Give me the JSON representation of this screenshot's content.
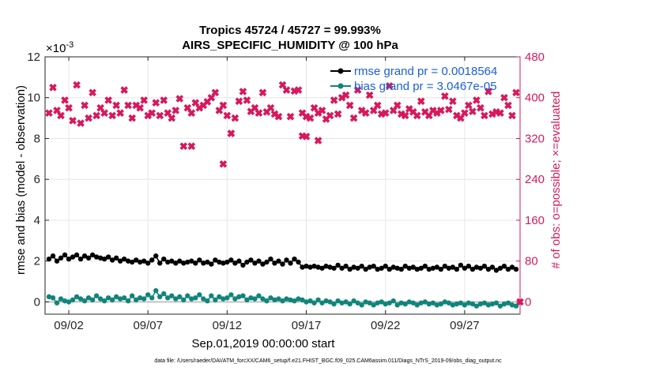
{
  "chart_data": {
    "type": "line",
    "title_line1": "Tropics 45724 / 45727 = 99.993%",
    "title_line2": "AIRS_SPECIFIC_HUMIDITY @ 100 hPa",
    "left_exponent_base": "×10",
    "left_exponent_power": "-3",
    "xlabel": "Sep.01,2019 00:00:00 start",
    "ylabel_left": "rmse and bias (model - observation)",
    "ylabel_right": "# of obs: o=possible; ×=evaluated",
    "footnote": "data file: /Users/raeder/DAI/ATM_forcXX/CAM6_setup/f.e21.FHIST_BGC.f09_025.CAM6assim.011/Diags_NTrS_2019-09/obs_diag_output.nc",
    "xlim": [
      0.5,
      30.5
    ],
    "ylim_left": [
      -0.6,
      12
    ],
    "ylim_right": [
      -24,
      480
    ],
    "x_ticks": [
      2,
      7,
      12,
      17,
      22,
      27
    ],
    "x_tick_labels": [
      "09/02",
      "09/07",
      "09/12",
      "09/17",
      "09/22",
      "09/27"
    ],
    "y_left_ticks": [
      0,
      2,
      4,
      6,
      8,
      10,
      12
    ],
    "y_left_tick_labels": [
      "0",
      "2",
      "4",
      "6",
      "8",
      "10",
      "12"
    ],
    "y_right_ticks": [
      0,
      80,
      160,
      240,
      320,
      400,
      480
    ],
    "y_right_tick_labels": [
      "0",
      "80",
      "160",
      "240",
      "320",
      "400",
      "480"
    ],
    "colors": {
      "rmse": "#000000",
      "bias": "#10857a",
      "obs": "#d6195d",
      "legend_text": "#1a5fe0",
      "zero_line": "#b4b4b4"
    },
    "series": [
      {
        "name": "rmse grand pr = 0.0018564",
        "axis": "left",
        "x": [
          0.75,
          1.0,
          1.25,
          1.5,
          1.75,
          2.0,
          2.25,
          2.5,
          2.75,
          3.0,
          3.25,
          3.5,
          3.75,
          4.0,
          4.25,
          4.5,
          4.75,
          5.0,
          5.25,
          5.5,
          5.75,
          6.0,
          6.25,
          6.5,
          6.75,
          7.0,
          7.25,
          7.5,
          7.75,
          8.0,
          8.25,
          8.5,
          8.75,
          9.0,
          9.25,
          9.5,
          9.75,
          10.0,
          10.25,
          10.5,
          10.75,
          11.0,
          11.25,
          11.5,
          11.75,
          12.0,
          12.25,
          12.5,
          12.75,
          13.0,
          13.25,
          13.5,
          13.75,
          14.0,
          14.25,
          14.5,
          14.75,
          15.0,
          15.25,
          15.5,
          15.75,
          16.0,
          16.25,
          16.5,
          16.75,
          17.0,
          17.25,
          17.5,
          17.75,
          18.0,
          18.25,
          18.5,
          18.75,
          19.0,
          19.25,
          19.5,
          19.75,
          20.0,
          20.25,
          20.5,
          20.75,
          21.0,
          21.25,
          21.5,
          21.75,
          22.0,
          22.25,
          22.5,
          22.75,
          23.0,
          23.25,
          23.5,
          23.75,
          24.0,
          24.25,
          24.5,
          24.75,
          25.0,
          25.25,
          25.5,
          25.75,
          26.0,
          26.25,
          26.5,
          26.75,
          27.0,
          27.25,
          27.5,
          27.75,
          28.0,
          28.25,
          28.5,
          28.75,
          29.0,
          29.25,
          29.5,
          29.75,
          30.0,
          30.25
        ],
        "values": [
          2.1,
          2.25,
          2.0,
          2.15,
          2.3,
          2.1,
          2.2,
          2.3,
          2.1,
          2.25,
          2.15,
          2.3,
          2.2,
          2.15,
          2.1,
          2.2,
          2.05,
          2.15,
          2.0,
          2.1,
          2.0,
          1.95,
          2.05,
          1.95,
          2.0,
          1.9,
          2.05,
          2.25,
          1.9,
          2.1,
          1.95,
          2.0,
          1.9,
          2.0,
          1.9,
          1.95,
          2.0,
          1.9,
          2.05,
          1.9,
          1.95,
          1.85,
          2.05,
          1.95,
          1.9,
          1.95,
          2.05,
          1.9,
          2.0,
          1.8,
          1.95,
          2.05,
          1.9,
          2.0,
          1.85,
          1.95,
          2.1,
          1.9,
          2.0,
          1.85,
          2.05,
          1.9,
          2.1,
          1.95,
          1.7,
          1.75,
          1.7,
          1.75,
          1.7,
          1.65,
          1.75,
          1.7,
          1.65,
          1.8,
          1.65,
          1.75,
          1.6,
          1.7,
          1.65,
          1.75,
          1.6,
          1.7,
          1.75,
          1.6,
          1.65,
          1.75,
          1.6,
          1.7,
          1.65,
          1.6,
          1.75,
          1.65,
          1.7,
          1.6,
          1.65,
          1.75,
          1.6,
          1.65,
          1.7,
          1.6,
          1.75,
          1.65,
          1.7,
          1.6,
          1.8,
          1.65,
          1.75,
          1.6,
          1.7,
          1.65,
          1.75,
          1.6,
          1.7,
          1.55,
          1.65,
          1.75,
          1.6,
          1.7,
          1.6
        ]
      },
      {
        "name": "bias grand pr = 3.0467e-05",
        "axis": "left",
        "x": [
          0.75,
          1.0,
          1.25,
          1.5,
          1.75,
          2.0,
          2.25,
          2.5,
          2.75,
          3.0,
          3.25,
          3.5,
          3.75,
          4.0,
          4.25,
          4.5,
          4.75,
          5.0,
          5.25,
          5.5,
          5.75,
          6.0,
          6.25,
          6.5,
          6.75,
          7.0,
          7.25,
          7.5,
          7.75,
          8.0,
          8.25,
          8.5,
          8.75,
          9.0,
          9.25,
          9.5,
          9.75,
          10.0,
          10.25,
          10.5,
          10.75,
          11.0,
          11.25,
          11.5,
          11.75,
          12.0,
          12.25,
          12.5,
          12.75,
          13.0,
          13.25,
          13.5,
          13.75,
          14.0,
          14.25,
          14.5,
          14.75,
          15.0,
          15.25,
          15.5,
          15.75,
          16.0,
          16.25,
          16.5,
          16.75,
          17.0,
          17.25,
          17.5,
          17.75,
          18.0,
          18.25,
          18.5,
          18.75,
          19.0,
          19.25,
          19.5,
          19.75,
          20.0,
          20.25,
          20.5,
          20.75,
          21.0,
          21.25,
          21.5,
          21.75,
          22.0,
          22.25,
          22.5,
          22.75,
          23.0,
          23.25,
          23.5,
          23.75,
          24.0,
          24.25,
          24.5,
          24.75,
          25.0,
          25.25,
          25.5,
          25.75,
          26.0,
          26.25,
          26.5,
          26.75,
          27.0,
          27.25,
          27.5,
          27.75,
          28.0,
          28.25,
          28.5,
          28.75,
          29.0,
          29.25,
          29.5,
          29.75,
          30.0,
          30.25
        ],
        "values": [
          0.25,
          0.2,
          -0.05,
          0.15,
          0.05,
          0.0,
          0.1,
          0.25,
          0.15,
          0.05,
          0.2,
          0.1,
          0.3,
          0.15,
          0.05,
          0.2,
          0.1,
          0.25,
          0.15,
          0.2,
          0.05,
          0.3,
          0.1,
          0.2,
          0.15,
          0.35,
          0.2,
          0.55,
          0.25,
          0.4,
          0.2,
          0.3,
          0.15,
          0.25,
          0.1,
          0.3,
          0.15,
          0.2,
          0.35,
          0.15,
          0.05,
          0.3,
          0.1,
          0.25,
          0.15,
          0.2,
          0.35,
          0.15,
          0.25,
          0.3,
          0.1,
          0.2,
          0.15,
          0.3,
          0.15,
          0.05,
          0.2,
          0.1,
          0.15,
          0.05,
          0.15,
          0.1,
          0.05,
          0.15,
          0.1,
          0.0,
          0.05,
          -0.05,
          0.1,
          -0.05,
          0.05,
          0.0,
          -0.1,
          0.05,
          -0.05,
          0.0,
          -0.1,
          0.05,
          -0.05,
          -0.15,
          0.0,
          -0.05,
          -0.15,
          -0.05,
          0.0,
          -0.1,
          -0.05,
          0.05,
          -0.15,
          -0.05,
          -0.1,
          0.0,
          -0.05,
          -0.15,
          -0.05,
          0.0,
          -0.1,
          -0.05,
          -0.15,
          -0.1,
          0.0,
          -0.05,
          -0.15,
          -0.1,
          -0.05,
          -0.15,
          -0.05,
          -0.1,
          -0.2,
          -0.1,
          -0.05,
          -0.15,
          -0.1,
          -0.05,
          -0.2,
          -0.1,
          -0.05,
          -0.15,
          -0.2
        ]
      },
      {
        "name": "# of obs",
        "axis": "right",
        "x": [
          0.75,
          1.0,
          1.25,
          1.5,
          1.75,
          2.0,
          2.25,
          2.5,
          2.75,
          3.0,
          3.25,
          3.5,
          3.75,
          4.0,
          4.25,
          4.5,
          4.75,
          5.0,
          5.25,
          5.5,
          5.75,
          6.0,
          6.25,
          6.5,
          6.75,
          7.0,
          7.25,
          7.5,
          7.75,
          8.0,
          8.25,
          8.5,
          8.75,
          9.0,
          9.25,
          9.5,
          9.75,
          10.0,
          10.25,
          10.5,
          10.75,
          11.0,
          11.25,
          11.5,
          11.75,
          12.0,
          12.25,
          12.5,
          12.75,
          13.0,
          13.25,
          13.5,
          13.75,
          14.0,
          14.25,
          14.5,
          14.75,
          15.0,
          15.25,
          15.5,
          15.75,
          16.0,
          16.25,
          16.5,
          16.75,
          17.0,
          17.25,
          17.5,
          17.75,
          18.0,
          18.25,
          18.5,
          18.75,
          19.0,
          19.25,
          19.5,
          19.75,
          20.0,
          20.25,
          20.5,
          20.75,
          21.0,
          21.25,
          21.5,
          21.75,
          22.0,
          22.25,
          22.5,
          22.75,
          23.0,
          23.25,
          23.5,
          23.75,
          24.0,
          24.25,
          24.5,
          24.75,
          25.0,
          25.25,
          25.5,
          25.75,
          26.0,
          26.25,
          26.5,
          26.75,
          27.0,
          27.25,
          27.5,
          27.75,
          28.0,
          28.25,
          28.5,
          28.75,
          29.0,
          29.25,
          29.5,
          29.75,
          30.0,
          30.25
        ],
        "values": [
          370,
          420,
          375,
          365,
          395,
          380,
          355,
          425,
          350,
          385,
          360,
          410,
          365,
          380,
          370,
          395,
          365,
          385,
          370,
          415,
          385,
          360,
          385,
          380,
          395,
          365,
          370,
          390,
          365,
          395,
          370,
          360,
          375,
          398,
          305,
          380,
          370,
          390,
          380,
          385,
          392,
          400,
          410,
          375,
          385,
          365,
          330,
          360,
          393,
          412,
          395,
          373,
          380,
          370,
          410,
          372,
          380,
          368,
          363,
          425,
          415,
          363,
          413,
          415,
          370,
          363,
          360,
          380,
          370,
          375,
          358,
          365,
          395,
          368,
          400,
          405,
          385,
          360,
          415,
          375,
          370,
          405,
          375,
          385,
          368,
          370,
          423,
          375,
          385,
          368,
          365,
          378,
          372,
          365,
          393,
          372,
          365,
          375,
          370,
          375,
          403,
          377,
          393,
          365,
          360,
          370,
          385,
          373,
          395,
          380,
          365,
          412,
          368,
          372,
          370,
          400,
          385,
          365,
          410
        ]
      }
    ],
    "isolated_obs_points": [
      {
        "x": 9.75,
        "value": 305
      },
      {
        "x": 11.75,
        "value": 270
      },
      {
        "x": 12.25,
        "value": 330
      },
      {
        "x": 16.75,
        "value": 325
      },
      {
        "x": 17.0,
        "value": 324
      },
      {
        "x": 17.75,
        "value": 316
      },
      {
        "x": 30.5,
        "value": 0
      }
    ]
  }
}
